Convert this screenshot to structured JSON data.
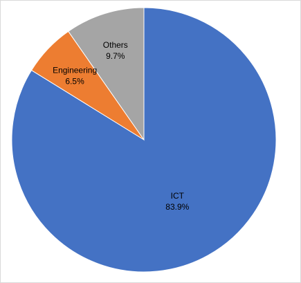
{
  "chart_data": {
    "type": "pie",
    "title": "",
    "slices": [
      {
        "label": "ICT",
        "value": 83.9,
        "value_label": "83.9%",
        "color": "#4472C4"
      },
      {
        "label": "Engineering",
        "value": 6.5,
        "value_label": "6.5%",
        "color": "#ED7D31"
      },
      {
        "label": "Others",
        "value": 9.7,
        "value_label": "9.7%",
        "color": "#A5A5A5"
      }
    ],
    "start_angle": "12 o'clock",
    "direction": "clockwise",
    "legend": "none"
  }
}
